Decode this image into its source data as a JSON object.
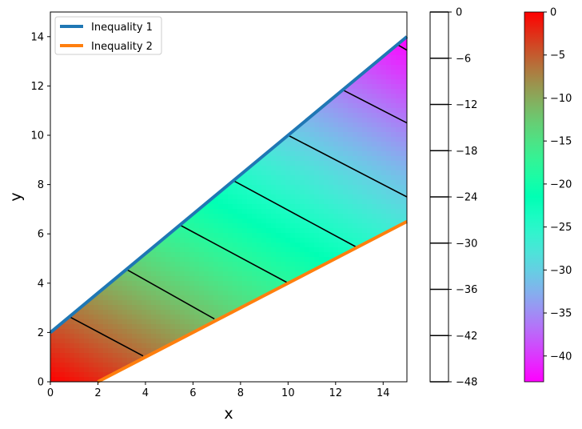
{
  "chart_data": {
    "type": "area",
    "title": "",
    "xlabel": "x",
    "ylabel": "y",
    "xlim": [
      0,
      15
    ],
    "ylim": [
      0,
      15
    ],
    "x_ticks": [
      0,
      2,
      4,
      6,
      8,
      10,
      12,
      14
    ],
    "y_ticks": [
      0,
      2,
      4,
      6,
      8,
      10,
      12,
      14
    ],
    "legend": {
      "placement": "top-left",
      "entries": [
        "Inequality 1",
        "Inequality 2"
      ]
    },
    "series": [
      {
        "name": "Inequality 1",
        "color": "#1f77b4",
        "x": [
          0,
          15
        ],
        "y": [
          2,
          14
        ]
      },
      {
        "name": "Inequality 2",
        "color": "#ff7f0e",
        "x": [
          2,
          15
        ],
        "y": [
          0,
          6.5
        ]
      }
    ],
    "feasible_region": {
      "fill": "gradient",
      "colormap": "rainbow",
      "value_range": [
        -43,
        0
      ]
    },
    "contour_lines": [
      {
        "level": -6,
        "from": [
          0.8,
          2.64
        ],
        "to": [
          3.9,
          1.05
        ]
      },
      {
        "level": -12,
        "from": [
          3.2,
          4.56
        ],
        "to": [
          6.9,
          2.55
        ]
      },
      {
        "level": -18,
        "from": [
          5.45,
          6.36
        ],
        "to": [
          9.95,
          4.03
        ]
      },
      {
        "level": -24,
        "from": [
          7.7,
          8.16
        ],
        "to": [
          12.9,
          5.45
        ]
      },
      {
        "level": -30,
        "from": [
          10.0,
          10.0
        ],
        "to": [
          15.0,
          7.5
        ]
      },
      {
        "level": -36,
        "from": [
          12.3,
          11.84
        ],
        "to": [
          15.0,
          10.5
        ]
      },
      {
        "level": -42,
        "from": [
          14.6,
          13.68
        ],
        "to": [
          15.0,
          13.45
        ]
      }
    ],
    "contour_colorbar": {
      "ticks": [
        0,
        -6,
        -12,
        -18,
        -24,
        -30,
        -36,
        -42,
        -48
      ],
      "tick_labels": [
        "0",
        "−6",
        "−12",
        "−18",
        "−24",
        "−30",
        "−36",
        "−42",
        "−48"
      ],
      "range": [
        -48,
        0
      ]
    },
    "color_colorbar": {
      "colormap": "rainbow",
      "ticks": [
        0,
        -5,
        -10,
        -15,
        -20,
        -25,
        -30,
        -35,
        -40
      ],
      "tick_labels": [
        "0",
        "−5",
        "−10",
        "−15",
        "−20",
        "−25",
        "−30",
        "−35",
        "−40"
      ],
      "range": [
        -43,
        0
      ]
    }
  }
}
